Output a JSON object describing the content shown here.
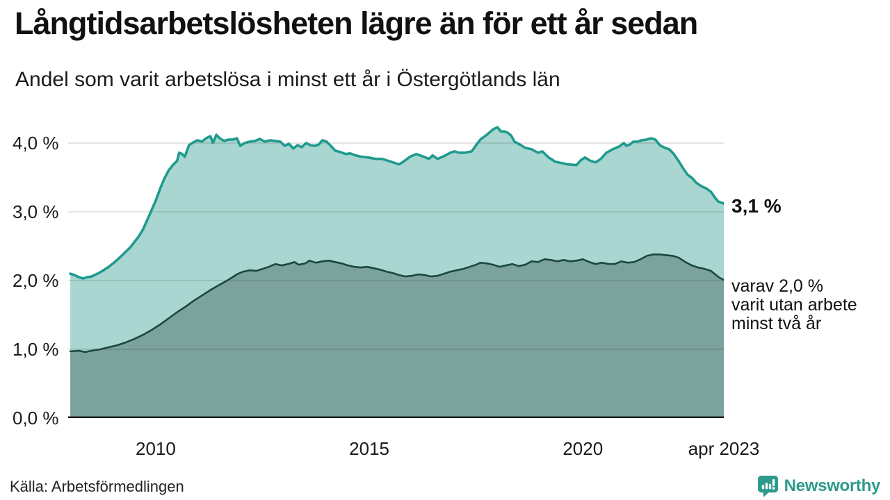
{
  "title": "Långtidsarbetslösheten lägre än för ett år sedan",
  "subtitle": "Andel som varit arbetslösa i minst ett år i Östergötlands län",
  "source": "Källa: Arbetsförmedlingen",
  "branding": {
    "name": "Newsworthy",
    "color": "#2e9a8c"
  },
  "annotations": {
    "latest_total": "3,1 %",
    "latest_two_years": [
      "varav 2,0 %",
      "varit utan arbete",
      "minst två år"
    ]
  },
  "colors": {
    "grid": "rgba(30,30,30,0.16)",
    "baseline": "#1a1a1a"
  },
  "chart_data": {
    "type": "area",
    "title": "Långtidsarbetslösheten lägre än för ett år sedan",
    "subtitle": "Andel som varit arbetslösa i minst ett år i Östergötlands län",
    "x_axis": {
      "range": [
        2007.95,
        2023.3
      ],
      "ticks": [
        {
          "t": 2010,
          "label": "2010"
        },
        {
          "t": 2015,
          "label": "2015"
        },
        {
          "t": 2020,
          "label": "2020"
        },
        {
          "t": 2023.3,
          "label": "apr 2023"
        }
      ]
    },
    "y_axis": {
      "range": [
        0,
        4.33
      ],
      "unit": "%",
      "gridlines": [
        1,
        2,
        3,
        4
      ],
      "ticks": [
        {
          "v": 0,
          "label": "0,0 %"
        },
        {
          "v": 1,
          "label": "1,0 %"
        },
        {
          "v": 2,
          "label": "2,0 %"
        },
        {
          "v": 3,
          "label": "3,0 %"
        },
        {
          "v": 4,
          "label": "4,0 %"
        }
      ]
    },
    "series": [
      {
        "name": "Andel arbetslösa minst ett år",
        "line_color": "#1f9a8e",
        "fill_color": "#a9d6d0",
        "line_width": 3.6,
        "latest_label": "3,1 %",
        "points": [
          [
            2008,
            2.1
          ],
          [
            2008.1,
            2.08
          ],
          [
            2008.2,
            2.05
          ],
          [
            2008.3,
            2.03
          ],
          [
            2008.4,
            2.05
          ],
          [
            2008.5,
            2.06
          ],
          [
            2008.6,
            2.09
          ],
          [
            2008.7,
            2.12
          ],
          [
            2008.8,
            2.16
          ],
          [
            2008.9,
            2.2
          ],
          [
            2009,
            2.25
          ],
          [
            2009.1,
            2.3
          ],
          [
            2009.2,
            2.36
          ],
          [
            2009.3,
            2.42
          ],
          [
            2009.4,
            2.48
          ],
          [
            2009.5,
            2.56
          ],
          [
            2009.6,
            2.64
          ],
          [
            2009.7,
            2.74
          ],
          [
            2009.8,
            2.88
          ],
          [
            2009.9,
            3.02
          ],
          [
            2010,
            3.16
          ],
          [
            2010.1,
            3.33
          ],
          [
            2010.2,
            3.48
          ],
          [
            2010.3,
            3.6
          ],
          [
            2010.4,
            3.68
          ],
          [
            2010.5,
            3.74
          ],
          [
            2010.55,
            3.86
          ],
          [
            2010.62,
            3.84
          ],
          [
            2010.68,
            3.8
          ],
          [
            2010.78,
            3.97
          ],
          [
            2010.88,
            4.01
          ],
          [
            2010.98,
            4.04
          ],
          [
            2011.08,
            4.02
          ],
          [
            2011.18,
            4.07
          ],
          [
            2011.28,
            4.1
          ],
          [
            2011.34,
            4
          ],
          [
            2011.42,
            4.12
          ],
          [
            2011.5,
            4.07
          ],
          [
            2011.6,
            4.03
          ],
          [
            2011.7,
            4.05
          ],
          [
            2011.8,
            4.05
          ],
          [
            2011.9,
            4.07
          ],
          [
            2011.98,
            3.96
          ],
          [
            2012.08,
            4
          ],
          [
            2012.2,
            4.02
          ],
          [
            2012.32,
            4.03
          ],
          [
            2012.44,
            4.06
          ],
          [
            2012.55,
            4.02
          ],
          [
            2012.68,
            4.04
          ],
          [
            2012.8,
            4.03
          ],
          [
            2012.92,
            4.02
          ],
          [
            2013.02,
            3.96
          ],
          [
            2013.12,
            3.99
          ],
          [
            2013.22,
            3.92
          ],
          [
            2013.32,
            3.97
          ],
          [
            2013.42,
            3.94
          ],
          [
            2013.52,
            4
          ],
          [
            2013.62,
            3.97
          ],
          [
            2013.72,
            3.96
          ],
          [
            2013.82,
            3.98
          ],
          [
            2013.9,
            4.04
          ],
          [
            2014,
            4.02
          ],
          [
            2014.1,
            3.96
          ],
          [
            2014.2,
            3.89
          ],
          [
            2014.32,
            3.87
          ],
          [
            2014.45,
            3.84
          ],
          [
            2014.55,
            3.85
          ],
          [
            2014.68,
            3.82
          ],
          [
            2014.82,
            3.8
          ],
          [
            2014.98,
            3.79
          ],
          [
            2015.15,
            3.77
          ],
          [
            2015.3,
            3.77
          ],
          [
            2015.45,
            3.74
          ],
          [
            2015.6,
            3.71
          ],
          [
            2015.7,
            3.69
          ],
          [
            2015.8,
            3.73
          ],
          [
            2015.95,
            3.8
          ],
          [
            2016.1,
            3.84
          ],
          [
            2016.28,
            3.8
          ],
          [
            2016.4,
            3.77
          ],
          [
            2016.48,
            3.82
          ],
          [
            2016.6,
            3.77
          ],
          [
            2016.75,
            3.81
          ],
          [
            2016.9,
            3.86
          ],
          [
            2017,
            3.88
          ],
          [
            2017.1,
            3.86
          ],
          [
            2017.25,
            3.86
          ],
          [
            2017.4,
            3.88
          ],
          [
            2017.5,
            3.97
          ],
          [
            2017.6,
            4.05
          ],
          [
            2017.75,
            4.12
          ],
          [
            2017.9,
            4.2
          ],
          [
            2018,
            4.23
          ],
          [
            2018.08,
            4.17
          ],
          [
            2018.16,
            4.17
          ],
          [
            2018.24,
            4.15
          ],
          [
            2018.32,
            4.11
          ],
          [
            2018.4,
            4.02
          ],
          [
            2018.55,
            3.97
          ],
          [
            2018.65,
            3.93
          ],
          [
            2018.8,
            3.91
          ],
          [
            2018.95,
            3.86
          ],
          [
            2019.05,
            3.88
          ],
          [
            2019.2,
            3.79
          ],
          [
            2019.35,
            3.73
          ],
          [
            2019.5,
            3.71
          ],
          [
            2019.65,
            3.69
          ],
          [
            2019.85,
            3.68
          ],
          [
            2019.95,
            3.75
          ],
          [
            2020.05,
            3.79
          ],
          [
            2020.18,
            3.74
          ],
          [
            2020.3,
            3.72
          ],
          [
            2020.42,
            3.77
          ],
          [
            2020.55,
            3.86
          ],
          [
            2020.7,
            3.91
          ],
          [
            2020.85,
            3.95
          ],
          [
            2020.96,
            4
          ],
          [
            2021.02,
            3.96
          ],
          [
            2021.1,
            3.98
          ],
          [
            2021.18,
            4.02
          ],
          [
            2021.28,
            4.02
          ],
          [
            2021.38,
            4.04
          ],
          [
            2021.48,
            4.05
          ],
          [
            2021.6,
            4.07
          ],
          [
            2021.7,
            4.05
          ],
          [
            2021.8,
            3.97
          ],
          [
            2021.92,
            3.93
          ],
          [
            2022.02,
            3.91
          ],
          [
            2022.13,
            3.84
          ],
          [
            2022.24,
            3.74
          ],
          [
            2022.34,
            3.64
          ],
          [
            2022.45,
            3.54
          ],
          [
            2022.56,
            3.49
          ],
          [
            2022.66,
            3.42
          ],
          [
            2022.78,
            3.37
          ],
          [
            2022.89,
            3.34
          ],
          [
            2023,
            3.29
          ],
          [
            2023.1,
            3.2
          ],
          [
            2023.17,
            3.15
          ],
          [
            2023.3,
            3.12
          ]
        ]
      },
      {
        "name": "varav utan arbete minst två år",
        "line_color": "#1b4742",
        "fill_color": "#7ba29d",
        "line_width": 2.6,
        "latest_label": "varav 2,0 % varit utan arbete minst två år",
        "points": [
          [
            2008,
            0.97
          ],
          [
            2008.2,
            0.98
          ],
          [
            2008.35,
            0.96
          ],
          [
            2008.5,
            0.98
          ],
          [
            2008.7,
            1
          ],
          [
            2008.9,
            1.03
          ],
          [
            2009.1,
            1.06
          ],
          [
            2009.3,
            1.1
          ],
          [
            2009.5,
            1.15
          ],
          [
            2009.7,
            1.21
          ],
          [
            2009.9,
            1.28
          ],
          [
            2010.1,
            1.36
          ],
          [
            2010.3,
            1.45
          ],
          [
            2010.5,
            1.54
          ],
          [
            2010.7,
            1.62
          ],
          [
            2010.9,
            1.71
          ],
          [
            2011.1,
            1.79
          ],
          [
            2011.3,
            1.87
          ],
          [
            2011.5,
            1.94
          ],
          [
            2011.7,
            2.01
          ],
          [
            2011.9,
            2.09
          ],
          [
            2012.05,
            2.13
          ],
          [
            2012.2,
            2.15
          ],
          [
            2012.35,
            2.14
          ],
          [
            2012.5,
            2.17
          ],
          [
            2012.65,
            2.2
          ],
          [
            2012.8,
            2.24
          ],
          [
            2012.95,
            2.22
          ],
          [
            2013.1,
            2.24
          ],
          [
            2013.25,
            2.27
          ],
          [
            2013.35,
            2.23
          ],
          [
            2013.5,
            2.25
          ],
          [
            2013.6,
            2.29
          ],
          [
            2013.75,
            2.26
          ],
          [
            2013.9,
            2.28
          ],
          [
            2014.05,
            2.29
          ],
          [
            2014.2,
            2.27
          ],
          [
            2014.35,
            2.25
          ],
          [
            2014.5,
            2.22
          ],
          [
            2014.65,
            2.2
          ],
          [
            2014.8,
            2.19
          ],
          [
            2014.95,
            2.2
          ],
          [
            2015.1,
            2.18
          ],
          [
            2015.25,
            2.16
          ],
          [
            2015.4,
            2.13
          ],
          [
            2015.55,
            2.11
          ],
          [
            2015.7,
            2.08
          ],
          [
            2015.85,
            2.06
          ],
          [
            2016,
            2.07
          ],
          [
            2016.15,
            2.09
          ],
          [
            2016.3,
            2.08
          ],
          [
            2016.45,
            2.06
          ],
          [
            2016.6,
            2.07
          ],
          [
            2016.75,
            2.1
          ],
          [
            2016.9,
            2.13
          ],
          [
            2017.05,
            2.15
          ],
          [
            2017.2,
            2.17
          ],
          [
            2017.35,
            2.2
          ],
          [
            2017.5,
            2.23
          ],
          [
            2017.6,
            2.26
          ],
          [
            2017.75,
            2.25
          ],
          [
            2017.9,
            2.23
          ],
          [
            2018.05,
            2.2
          ],
          [
            2018.2,
            2.22
          ],
          [
            2018.35,
            2.24
          ],
          [
            2018.5,
            2.21
          ],
          [
            2018.65,
            2.23
          ],
          [
            2018.8,
            2.28
          ],
          [
            2018.95,
            2.27
          ],
          [
            2019.1,
            2.31
          ],
          [
            2019.25,
            2.3
          ],
          [
            2019.4,
            2.28
          ],
          [
            2019.55,
            2.3
          ],
          [
            2019.7,
            2.28
          ],
          [
            2019.85,
            2.29
          ],
          [
            2020,
            2.31
          ],
          [
            2020.15,
            2.27
          ],
          [
            2020.3,
            2.24
          ],
          [
            2020.45,
            2.26
          ],
          [
            2020.6,
            2.24
          ],
          [
            2020.75,
            2.24
          ],
          [
            2020.9,
            2.28
          ],
          [
            2021.05,
            2.26
          ],
          [
            2021.2,
            2.27
          ],
          [
            2021.35,
            2.31
          ],
          [
            2021.5,
            2.36
          ],
          [
            2021.65,
            2.38
          ],
          [
            2021.8,
            2.38
          ],
          [
            2021.95,
            2.37
          ],
          [
            2022.1,
            2.36
          ],
          [
            2022.25,
            2.33
          ],
          [
            2022.4,
            2.27
          ],
          [
            2022.55,
            2.22
          ],
          [
            2022.7,
            2.19
          ],
          [
            2022.85,
            2.17
          ],
          [
            2023,
            2.14
          ],
          [
            2023.1,
            2.09
          ],
          [
            2023.2,
            2.04
          ],
          [
            2023.3,
            2.01
          ]
        ]
      }
    ]
  }
}
